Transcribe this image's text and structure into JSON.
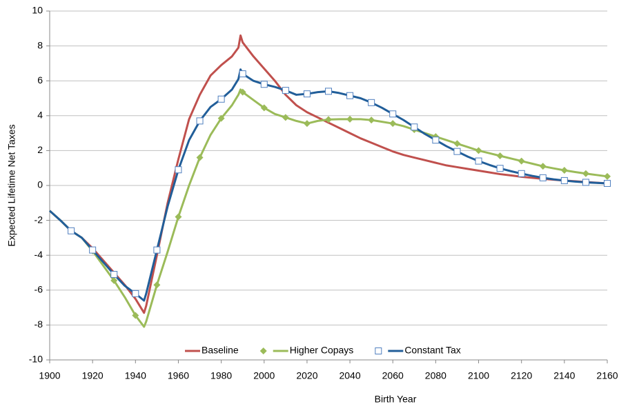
{
  "chart_data": {
    "type": "line",
    "x_label": "Birth Year",
    "y_label": "Expected Lifetime Net Taxes",
    "x": [
      1900,
      1905,
      1910,
      1915,
      1920,
      1925,
      1930,
      1935,
      1940,
      1944,
      1945,
      1950,
      1955,
      1960,
      1965,
      1970,
      1975,
      1980,
      1985,
      1988,
      1989,
      1990,
      1995,
      2000,
      2005,
      2010,
      2015,
      2020,
      2025,
      2030,
      2035,
      2040,
      2045,
      2050,
      2055,
      2060,
      2065,
      2070,
      2075,
      2080,
      2085,
      2090,
      2095,
      2100,
      2105,
      2110,
      2115,
      2120,
      2125,
      2130,
      2135,
      2140,
      2145,
      2150,
      2155,
      2160
    ],
    "series": [
      {
        "name": "Baseline",
        "color": "#c0504d",
        "marker": null,
        "values": [
          -1.45,
          -2.0,
          -2.6,
          -3.0,
          -3.6,
          -4.3,
          -5.0,
          -5.7,
          -6.5,
          -7.3,
          -6.9,
          -4.0,
          -1.0,
          1.5,
          3.8,
          5.2,
          6.3,
          6.9,
          7.4,
          7.9,
          8.6,
          8.2,
          7.4,
          6.7,
          6.0,
          5.2,
          4.6,
          4.2,
          3.9,
          3.6,
          3.3,
          3.0,
          2.7,
          2.45,
          2.2,
          1.95,
          1.75,
          1.6,
          1.45,
          1.3,
          1.15,
          1.05,
          0.95,
          0.85,
          0.75,
          0.65,
          0.58,
          0.5,
          0.44,
          0.38,
          0.33,
          0.28,
          0.24,
          0.2,
          0.16,
          0.12
        ]
      },
      {
        "name": "Higher Copays",
        "color": "#9bbb59",
        "marker": "diamond",
        "values": [
          -1.45,
          -2.0,
          -2.6,
          -3.0,
          -3.75,
          -4.6,
          -5.45,
          -6.4,
          -7.45,
          -8.1,
          -7.8,
          -5.7,
          -3.8,
          -1.8,
          0.0,
          1.6,
          2.9,
          3.85,
          4.6,
          5.2,
          5.5,
          5.35,
          4.9,
          4.45,
          4.1,
          3.9,
          3.7,
          3.55,
          3.7,
          3.78,
          3.8,
          3.8,
          3.8,
          3.75,
          3.65,
          3.55,
          3.4,
          3.2,
          3.0,
          2.8,
          2.6,
          2.4,
          2.2,
          2.0,
          1.85,
          1.7,
          1.55,
          1.4,
          1.25,
          1.1,
          0.98,
          0.87,
          0.77,
          0.68,
          0.6,
          0.52
        ]
      },
      {
        "name": "Constant Tax",
        "color": "#215e99",
        "marker": "square",
        "values": [
          -1.45,
          -2.0,
          -2.6,
          -3.0,
          -3.7,
          -4.4,
          -5.1,
          -5.75,
          -6.2,
          -6.6,
          -6.2,
          -3.7,
          -1.2,
          0.9,
          2.6,
          3.7,
          4.5,
          4.95,
          5.5,
          6.1,
          6.65,
          6.4,
          6.0,
          5.8,
          5.65,
          5.45,
          5.2,
          5.25,
          5.35,
          5.4,
          5.3,
          5.15,
          5.0,
          4.75,
          4.45,
          4.1,
          3.75,
          3.35,
          2.95,
          2.6,
          2.25,
          1.95,
          1.65,
          1.4,
          1.18,
          0.98,
          0.82,
          0.68,
          0.55,
          0.44,
          0.35,
          0.28,
          0.22,
          0.18,
          0.15,
          0.12
        ]
      }
    ],
    "xlim": [
      1900,
      2160
    ],
    "xticks": [
      1900,
      1920,
      1940,
      1960,
      1980,
      2000,
      2020,
      2040,
      2060,
      2080,
      2100,
      2120,
      2140,
      2160
    ],
    "ylim": [
      -10,
      10
    ],
    "yticks": [
      -10,
      -8,
      -6,
      -4,
      -2,
      0,
      2,
      4,
      6,
      8,
      10
    ],
    "grid": true,
    "legend": "bottom"
  }
}
